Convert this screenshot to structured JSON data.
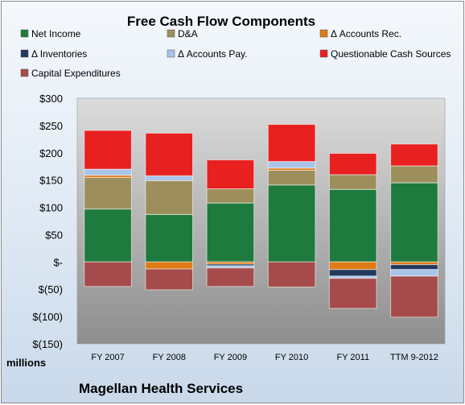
{
  "chart_data": {
    "type": "bar",
    "stacked": true,
    "title": "Free Cash Flow Components",
    "categories": [
      "FY 2007",
      "FY 2008",
      "FY 2009",
      "FY 2010",
      "FY 2011",
      "TTM 9-2012"
    ],
    "series": [
      {
        "name": "Net Income",
        "color": "#1f7a3e",
        "values": [
          97,
          87,
          108,
          141,
          133,
          145
        ]
      },
      {
        "name": "D&A",
        "color": "#9d8f5c",
        "values": [
          58,
          62,
          26,
          27,
          27,
          31
        ]
      },
      {
        "name": "Δ Accounts Rec.",
        "color": "#e07a17",
        "values": [
          4,
          -13,
          -4,
          4,
          -14,
          -5
        ]
      },
      {
        "name": "Δ Inventories",
        "color": "#223a5e",
        "values": [
          0,
          0,
          -3,
          0,
          -12,
          -9
        ]
      },
      {
        "name": "Δ Accounts Pay.",
        "color": "#a9c4e8",
        "values": [
          11,
          9,
          -4,
          12,
          -4,
          -12
        ]
      },
      {
        "name": "Questionable Cash Sources",
        "color": "#e82020",
        "values": [
          71,
          78,
          53,
          68,
          39,
          40
        ]
      },
      {
        "name": "Capital Expenditures",
        "color": "#a64b4b",
        "values": [
          -45,
          -38,
          -34,
          -46,
          -55,
          -75
        ]
      }
    ],
    "yaxis": {
      "min": -150,
      "max": 300,
      "step": 50,
      "tick_labels": [
        "$(150)",
        "$(100)",
        "$(50)",
        "$-",
        "$50",
        "$100",
        "$150",
        "$200",
        "$250",
        "$300"
      ]
    },
    "ylabel": "millions",
    "legend": "top",
    "grid": false
  },
  "footer": {
    "company": "Magellan Health Services"
  }
}
